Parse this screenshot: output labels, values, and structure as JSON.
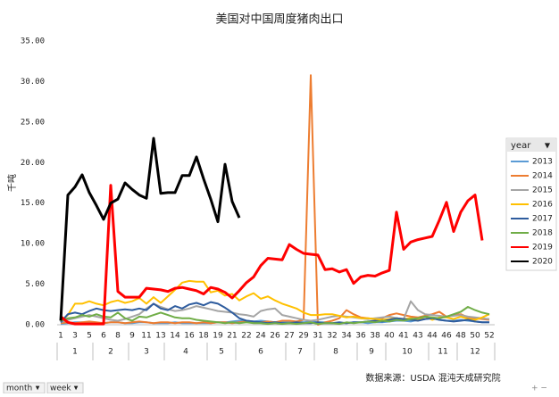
{
  "chart_data": {
    "type": "line",
    "title": "美国对中国周度猪肉出口",
    "y_label": "千吨",
    "source": "数据来源：USDA 混沌天成研究院",
    "legend_title": "year",
    "legend_position": "right",
    "pivot_buttons": [
      "month",
      "week"
    ],
    "categories": [
      "1",
      null,
      "3",
      null,
      "5",
      null,
      "6",
      null,
      "8",
      null,
      "9",
      null,
      "11",
      null,
      "13",
      null,
      "14",
      null,
      "16",
      null,
      "18",
      null,
      "19",
      null,
      "21",
      null,
      "22",
      null,
      "24",
      null,
      "26",
      null,
      "27",
      null,
      "29",
      null,
      "31",
      null,
      "32",
      null,
      "34",
      null,
      "36",
      null,
      "38",
      null,
      "40",
      null,
      "41",
      null,
      "43",
      null,
      "44",
      null,
      "46",
      null,
      "48",
      null,
      "50",
      null,
      "52"
    ],
    "category_groups": [
      "1",
      "1",
      "1",
      "1",
      "1",
      "2",
      "2",
      "2",
      "2",
      "2",
      "3",
      "3",
      "3",
      "3",
      "3",
      "4",
      "4",
      "4",
      "4",
      "4",
      "4",
      "5",
      "5",
      "5",
      "5",
      "6",
      "6",
      "6",
      "6",
      "6",
      "6",
      "6",
      "7",
      "7",
      "7",
      "7",
      "8",
      "8",
      "8",
      "8",
      "8",
      "8",
      "9",
      "9",
      "9",
      "9",
      "10",
      "10",
      "10",
      "10",
      "10",
      "10",
      "11",
      "11",
      "11",
      "11",
      "12",
      "12",
      "12",
      "12",
      "12"
    ],
    "ylim": [
      0,
      35
    ],
    "yticks": [
      {
        "value": 0,
        "label": "0.00"
      },
      {
        "value": 5,
        "label": "5.00"
      },
      {
        "value": 10,
        "label": "10.00"
      },
      {
        "value": 15,
        "label": "15.00"
      },
      {
        "value": 20,
        "label": "20.00"
      },
      {
        "value": 25,
        "label": "25.00"
      },
      {
        "value": 30,
        "label": "30.00"
      },
      {
        "value": 35,
        "label": "35.00"
      }
    ],
    "grid": false,
    "series": [
      {
        "name": "2013",
        "color": "#5b9bd5",
        "line_width": 2,
        "values": [
          0.1,
          0.2,
          0.3,
          0.3,
          0.2,
          0.2,
          0.2,
          0.3,
          0.3,
          0.2,
          0.2,
          0.3,
          0.3,
          0.2,
          0.2,
          0.2,
          0.3,
          0.2,
          0.2,
          0.2,
          0.2,
          0.2,
          0.3,
          0.3,
          0.4,
          0.5,
          0.5,
          0.4,
          0.5,
          0.4,
          0.3,
          0.3,
          0.3,
          0.4,
          0.3,
          0.4,
          0.3,
          0.3,
          0.2,
          0.2,
          0.2,
          0.3,
          0.3,
          0.2,
          0.3,
          0.3,
          0.4,
          0.5,
          0.5,
          0.4,
          0.6,
          0.7,
          0.8,
          0.6,
          0.5,
          0.5,
          0.6,
          0.5,
          0.4,
          0.3,
          0.3
        ]
      },
      {
        "name": "2014",
        "color": "#ed7d31",
        "line_width": 2,
        "values": [
          0.2,
          0.3,
          0.2,
          0.3,
          0.4,
          0.3,
          0.2,
          0.3,
          0.3,
          0.2,
          0.3,
          0.4,
          0.3,
          0.2,
          0.3,
          0.3,
          0.2,
          0.3,
          0.3,
          0.2,
          0.3,
          0.2,
          0.3,
          0.3,
          0.2,
          0.3,
          0.4,
          0.3,
          0.3,
          0.4,
          0.3,
          0.5,
          0.5,
          0.4,
          0.6,
          30.8,
          0,
          0.3,
          0.5,
          0.8,
          1.8,
          1.3,
          0.9,
          0.8,
          0.7,
          0.8,
          1.2,
          1.4,
          1.2,
          1.0,
          0.9,
          1.1,
          1.3,
          1.6,
          1.0,
          1.2,
          1.3,
          0.9,
          0.8,
          0.7,
          0.6
        ]
      },
      {
        "name": "2015",
        "color": "#a5a5a5",
        "line_width": 2,
        "values": [
          0.3,
          0.6,
          0.8,
          1.0,
          1.2,
          1.0,
          0.8,
          0.6,
          0.5,
          0.7,
          1.0,
          1.3,
          2.0,
          2.6,
          2.2,
          1.9,
          1.7,
          1.8,
          2.0,
          2.3,
          2.1,
          1.9,
          1.7,
          1.6,
          1.5,
          1.3,
          1.2,
          1.0,
          1.7,
          1.9,
          2.0,
          1.2,
          1.0,
          0.8,
          0.6,
          0.5,
          0.6,
          0.8,
          1.0,
          1.1,
          1.0,
          0.9,
          0.8,
          0.7,
          0.8,
          0.9,
          1.0,
          0.8,
          0.7,
          2.9,
          1.8,
          1.3,
          1.2,
          1.1,
          1.0,
          1.1,
          1.2,
          1.0,
          0.9,
          0.8,
          0.7
        ]
      },
      {
        "name": "2016",
        "color": "#ffc000",
        "line_width": 2,
        "values": [
          0.5,
          1.2,
          2.6,
          2.6,
          2.9,
          2.6,
          2.4,
          2.8,
          3.0,
          2.7,
          2.9,
          3.3,
          2.6,
          3.4,
          2.7,
          3.5,
          4.3,
          5.2,
          5.4,
          5.3,
          5.3,
          4.0,
          4.2,
          3.6,
          3.8,
          3.0,
          3.5,
          3.9,
          3.2,
          3.5,
          3.0,
          2.6,
          2.3,
          2.0,
          1.5,
          1.2,
          1.2,
          1.3,
          1.3,
          1.1,
          0.9,
          1.0,
          0.8,
          0.8,
          0.7,
          0.6,
          0.7,
          0.8,
          0.7,
          0.8,
          0.6,
          1.0,
          0.6,
          0.9,
          0.9,
          0.7,
          1.0,
          0.7,
          0.6,
          0.9,
          1.3
        ]
      },
      {
        "name": "2017",
        "color": "#2e5c9e",
        "line_width": 2,
        "values": [
          0.3,
          1.3,
          1.5,
          1.3,
          1.7,
          2.0,
          1.8,
          1.7,
          1.8,
          1.9,
          1.8,
          2.0,
          1.8,
          2.6,
          2.0,
          1.8,
          2.3,
          2.0,
          2.5,
          2.7,
          2.4,
          2.8,
          2.6,
          2.1,
          1.5,
          0.8,
          0.5,
          0.4,
          0.3,
          0.2,
          0.3,
          0.2,
          0.2,
          0.3,
          0.2,
          0.2,
          0.3,
          0.2,
          0.2,
          0.3,
          0.2,
          0.3,
          0.3,
          0.4,
          0.5,
          0.4,
          0.6,
          0.8,
          0.7,
          0.6,
          0.5,
          0.7,
          0.8,
          0.6,
          0.5,
          0.4,
          0.5,
          0.6,
          0.4,
          0.3,
          0.3
        ]
      },
      {
        "name": "2018",
        "color": "#70ad47",
        "line_width": 2,
        "values": [
          0.5,
          0.8,
          0.9,
          1.2,
          1.0,
          1.3,
          1.0,
          0.9,
          1.5,
          0.8,
          0.5,
          1.0,
          0.9,
          1.2,
          1.5,
          1.2,
          0.9,
          0.8,
          0.8,
          0.6,
          0.5,
          0.4,
          0.3,
          0.2,
          0.3,
          0.2,
          0.3,
          0.2,
          0.2,
          0.1,
          0.2,
          0.1,
          0.2,
          0.1,
          0.2,
          0.3,
          0.1,
          0.2,
          0.2,
          0.1,
          0.3,
          0.2,
          0.3,
          0.4,
          0.3,
          0.5,
          0.4,
          0.6,
          0.5,
          0.7,
          0.8,
          1.0,
          0.9,
          0.8,
          1.0,
          1.3,
          1.6,
          2.2,
          1.8,
          1.5,
          1.3
        ]
      },
      {
        "name": "2019",
        "color": "#ff0000",
        "line_width": 3,
        "values": [
          1.0,
          0.3,
          0.1,
          0.1,
          0.1,
          0.1,
          0.1,
          17.2,
          4.1,
          3.4,
          3.4,
          3.4,
          4.5,
          4.4,
          4.3,
          4.1,
          4.5,
          4.6,
          4.4,
          4.2,
          3.8,
          4.6,
          4.4,
          4.0,
          3.3,
          4.2,
          5.2,
          5.9,
          7.3,
          8.2,
          8.1,
          8.0,
          9.9,
          9.3,
          8.8,
          8.7,
          8.6,
          6.8,
          6.9,
          6.5,
          6.8,
          5.1,
          5.9,
          6.1,
          6.0,
          6.4,
          6.7,
          13.9,
          9.3,
          10.2,
          10.5,
          10.7,
          10.9,
          12.9,
          15.1,
          11.5,
          13.9,
          15.3,
          16.0,
          10.4,
          null
        ]
      },
      {
        "name": "2020",
        "color": "#000000",
        "line_width": 3,
        "values": [
          0.5,
          16.0,
          17.0,
          18.5,
          16.3,
          14.7,
          13.0,
          15.0,
          15.5,
          17.5,
          16.7,
          16.0,
          15.6,
          23.0,
          16.2,
          16.3,
          16.3,
          18.4,
          18.4,
          20.7,
          18.0,
          15.5,
          12.7,
          19.8,
          15.2,
          13.2,
          null,
          null,
          null,
          null,
          null,
          null,
          null,
          null,
          null,
          null,
          null,
          null,
          null,
          null,
          null,
          null,
          null,
          null,
          null,
          null,
          null,
          null,
          null,
          null,
          null,
          null,
          null,
          null,
          null,
          null,
          null,
          null,
          null,
          null,
          null
        ]
      }
    ]
  }
}
